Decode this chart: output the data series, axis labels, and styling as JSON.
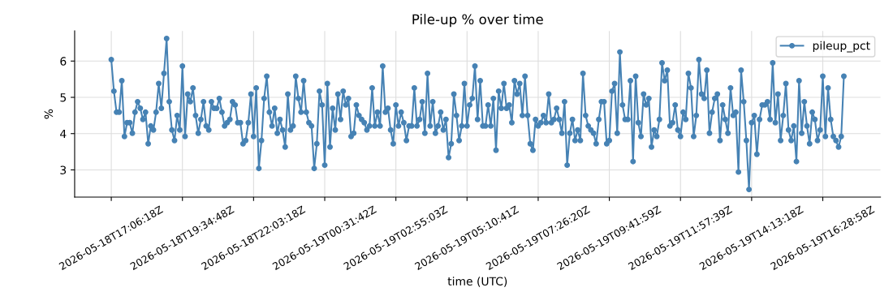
{
  "chart_data": {
    "type": "line",
    "title": "Pile-up % over time",
    "xlabel": "time (UTC)",
    "ylabel": "%",
    "categories": [
      "2026-05-18T17:06:18Z",
      null,
      null,
      null,
      null,
      null,
      null,
      null,
      null,
      null,
      null,
      null,
      null,
      null,
      null,
      null,
      null,
      null,
      null,
      null,
      null,
      null,
      null,
      null,
      null,
      null,
      null,
      "2026-05-18T19:34:48Z",
      null,
      null,
      null,
      null,
      null,
      null,
      null,
      null,
      null,
      null,
      null,
      null,
      null,
      null,
      null,
      null,
      null,
      null,
      null,
      null,
      null,
      null,
      null,
      null,
      null,
      null,
      "2026-05-18T22:03:18Z",
      null,
      null,
      null,
      null,
      null,
      null,
      null,
      null,
      null,
      null,
      null,
      null,
      null,
      null,
      null,
      null,
      null,
      null,
      null,
      null,
      null,
      null,
      null,
      null,
      null,
      null,
      "2026-05-19T00:31:42Z",
      null,
      null,
      null,
      null,
      null,
      null,
      null,
      null,
      null,
      null,
      null,
      null,
      null,
      null,
      null,
      null,
      null,
      null,
      null,
      null,
      null,
      null,
      null,
      null,
      null,
      null,
      "2026-05-19T02:55:03Z",
      null,
      null,
      null,
      null,
      null,
      null,
      null,
      null,
      null,
      null,
      null,
      null,
      null,
      null,
      null,
      null,
      null,
      null,
      null,
      null,
      null,
      null,
      null,
      null,
      null,
      null,
      "2026-05-19T05:10:41Z",
      null,
      null,
      null,
      null,
      null,
      null,
      null,
      null,
      null,
      null,
      null,
      null,
      null,
      null,
      null,
      null,
      null,
      null,
      null,
      null,
      null,
      null,
      null,
      null,
      null,
      null,
      "2026-05-19T07:26:20Z",
      null,
      null,
      null,
      null,
      null,
      null,
      null,
      null,
      null,
      null,
      null,
      null,
      null,
      null,
      null,
      null,
      null,
      null,
      null,
      null,
      null,
      null,
      null,
      null,
      null,
      null,
      "2026-05-19T09:41:59Z",
      null,
      null,
      null,
      null,
      null,
      null,
      null,
      null,
      null,
      null,
      null,
      null,
      null,
      null,
      null,
      null,
      null,
      null,
      null,
      null,
      null,
      null,
      null,
      null,
      null,
      null,
      "2026-05-19T11:57:39Z",
      null,
      null,
      null,
      null,
      null,
      null,
      null,
      null,
      null,
      null,
      null,
      null,
      null,
      null,
      null,
      null,
      null,
      null,
      null,
      null,
      null,
      null,
      null,
      null,
      null,
      null,
      "2026-05-19T14:13:18Z",
      null,
      null,
      null,
      null,
      null,
      null,
      null,
      null,
      null,
      null,
      null,
      null,
      null,
      null,
      null,
      null,
      null,
      null,
      null,
      null,
      null,
      null,
      null,
      null,
      null,
      null,
      "2026-05-19T16:28:58Z",
      null,
      null,
      null,
      null,
      null,
      null,
      null,
      null
    ],
    "series": [
      {
        "name": "pileup_pct",
        "color": "#4682b4",
        "values": [
          6.04,
          5.17,
          4.59,
          4.59,
          5.46,
          3.92,
          4.3,
          4.3,
          4.01,
          4.59,
          4.88,
          4.7,
          4.39,
          4.59,
          3.72,
          4.21,
          4.1,
          4.59,
          5.38,
          4.7,
          5.66,
          6.62,
          4.88,
          4.1,
          3.81,
          4.5,
          4.1,
          5.86,
          3.92,
          5.09,
          4.88,
          5.26,
          4.5,
          4.01,
          4.39,
          4.88,
          4.21,
          4.1,
          4.88,
          4.7,
          4.7,
          4.97,
          4.59,
          4.21,
          4.3,
          4.39,
          4.88,
          4.79,
          4.3,
          4.3,
          3.72,
          3.81,
          4.3,
          5.09,
          3.92,
          5.26,
          3.04,
          3.81,
          4.97,
          5.58,
          4.59,
          4.21,
          4.7,
          4.01,
          4.39,
          4.1,
          3.63,
          5.09,
          4.1,
          4.21,
          5.58,
          4.97,
          4.59,
          5.46,
          4.59,
          4.3,
          4.21,
          3.04,
          3.72,
          5.17,
          4.79,
          3.13,
          5.38,
          3.63,
          4.7,
          4.1,
          5.09,
          4.39,
          5.17,
          4.79,
          4.97,
          3.92,
          4.01,
          4.79,
          4.5,
          4.39,
          4.3,
          4.1,
          4.21,
          5.26,
          4.21,
          4.59,
          4.21,
          5.86,
          4.59,
          4.7,
          4.1,
          3.72,
          4.79,
          4.21,
          4.59,
          4.3,
          3.81,
          4.21,
          4.21,
          5.26,
          4.21,
          4.39,
          4.88,
          4.01,
          5.66,
          4.21,
          4.88,
          4.01,
          4.21,
          4.59,
          4.1,
          4.39,
          3.34,
          3.72,
          5.09,
          4.5,
          3.81,
          4.21,
          5.38,
          4.21,
          4.79,
          4.97,
          5.86,
          4.39,
          5.46,
          4.21,
          4.21,
          4.79,
          4.21,
          4.97,
          3.54,
          5.17,
          4.7,
          5.38,
          4.7,
          4.79,
          4.3,
          5.46,
          5.09,
          5.38,
          4.5,
          5.58,
          4.5,
          3.72,
          3.54,
          4.39,
          4.21,
          4.3,
          4.5,
          4.3,
          5.09,
          4.3,
          4.39,
          4.7,
          4.39,
          4.01,
          4.88,
          3.13,
          4.01,
          4.39,
          3.81,
          4.1,
          3.81,
          5.66,
          4.5,
          4.21,
          4.1,
          4.01,
          3.72,
          4.39,
          4.88,
          4.88,
          3.72,
          3.81,
          5.17,
          5.38,
          4.01,
          6.25,
          4.79,
          4.39,
          4.39,
          5.46,
          3.23,
          5.58,
          4.3,
          3.92,
          5.09,
          4.79,
          4.97,
          3.63,
          4.1,
          3.92,
          4.39,
          5.95,
          5.46,
          5.75,
          4.21,
          4.3,
          4.79,
          4.1,
          3.92,
          4.59,
          4.39,
          5.66,
          5.26,
          3.92,
          4.5,
          6.04,
          5.09,
          4.97,
          5.75,
          4.01,
          4.59,
          4.97,
          5.09,
          3.81,
          4.79,
          4.39,
          4.01,
          5.26,
          4.5,
          4.59,
          2.94,
          5.75,
          4.88,
          3.81,
          2.46,
          4.3,
          4.5,
          3.43,
          4.39,
          4.79,
          4.79,
          4.88,
          4.39,
          5.95,
          4.3,
          5.09,
          3.81,
          4.5,
          5.38,
          4.1,
          3.81,
          4.21,
          3.23,
          5.46,
          4.01,
          4.88,
          4.21,
          3.72,
          4.59,
          4.39,
          3.81,
          4.1,
          5.58,
          3.92,
          5.26,
          4.39,
          3.92,
          3.81,
          3.63,
          3.92,
          5.58
        ]
      }
    ],
    "ylim": [
      2.25,
      6.83
    ],
    "yticks": [
      3,
      4,
      5,
      6
    ],
    "grid": true,
    "legend": "top right",
    "marker": "circle",
    "line_style": "solid"
  }
}
